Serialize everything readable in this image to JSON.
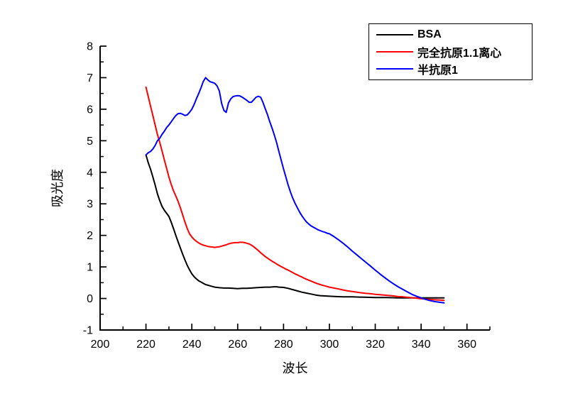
{
  "chart_data": {
    "type": "line",
    "title": "",
    "xlabel": "波长",
    "ylabel": "吸光度",
    "xlim": [
      200,
      370
    ],
    "ylim": [
      -1,
      8
    ],
    "grid": false,
    "legend_position": "top-right",
    "x_major_ticks": [
      200,
      220,
      240,
      260,
      280,
      300,
      320,
      340,
      360
    ],
    "x_minor_ticks": [
      210,
      230,
      250,
      270,
      290,
      310,
      330,
      350,
      370
    ],
    "y_major_ticks": [
      -1,
      0,
      1,
      2,
      3,
      4,
      5,
      6,
      7,
      8
    ],
    "y_minor_ticks": [
      -0.5,
      0.5,
      1.5,
      2.5,
      3.5,
      4.5,
      5.5,
      6.5,
      7.5
    ],
    "series": [
      {
        "name": "BSA",
        "color": "#000000",
        "points": [
          [
            220,
            4.55
          ],
          [
            221,
            4.3
          ],
          [
            222,
            4.1
          ],
          [
            223,
            3.85
          ],
          [
            224,
            3.6
          ],
          [
            225,
            3.32
          ],
          [
            226,
            3.1
          ],
          [
            227,
            2.92
          ],
          [
            228,
            2.8
          ],
          [
            229,
            2.7
          ],
          [
            230,
            2.6
          ],
          [
            231,
            2.42
          ],
          [
            232,
            2.22
          ],
          [
            233,
            2.0
          ],
          [
            234,
            1.8
          ],
          [
            235,
            1.6
          ],
          [
            236,
            1.4
          ],
          [
            237,
            1.22
          ],
          [
            238,
            1.05
          ],
          [
            239,
            0.91
          ],
          [
            240,
            0.78
          ],
          [
            241,
            0.69
          ],
          [
            242,
            0.62
          ],
          [
            243,
            0.56
          ],
          [
            244,
            0.52
          ],
          [
            245,
            0.48
          ],
          [
            246,
            0.44
          ],
          [
            247,
            0.42
          ],
          [
            248,
            0.4
          ],
          [
            249,
            0.38
          ],
          [
            250,
            0.36
          ],
          [
            252,
            0.34
          ],
          [
            254,
            0.33
          ],
          [
            256,
            0.33
          ],
          [
            258,
            0.32
          ],
          [
            260,
            0.31
          ],
          [
            262,
            0.32
          ],
          [
            264,
            0.32
          ],
          [
            266,
            0.33
          ],
          [
            268,
            0.34
          ],
          [
            270,
            0.35
          ],
          [
            272,
            0.36
          ],
          [
            274,
            0.36
          ],
          [
            276,
            0.37
          ],
          [
            277,
            0.37
          ],
          [
            278,
            0.36
          ],
          [
            280,
            0.35
          ],
          [
            282,
            0.32
          ],
          [
            284,
            0.28
          ],
          [
            286,
            0.24
          ],
          [
            288,
            0.2
          ],
          [
            290,
            0.17
          ],
          [
            292,
            0.14
          ],
          [
            294,
            0.11
          ],
          [
            296,
            0.09
          ],
          [
            298,
            0.08
          ],
          [
            300,
            0.07
          ],
          [
            303,
            0.06
          ],
          [
            306,
            0.05
          ],
          [
            310,
            0.05
          ],
          [
            315,
            0.04
          ],
          [
            320,
            0.03
          ],
          [
            325,
            0.03
          ],
          [
            330,
            0.02
          ],
          [
            335,
            0.02
          ],
          [
            340,
            0.02
          ],
          [
            345,
            0.02
          ],
          [
            350,
            0.02
          ]
        ]
      },
      {
        "name": "完全抗原1.1离心",
        "color": "#ff0000",
        "points": [
          [
            220,
            6.7
          ],
          [
            221,
            6.4
          ],
          [
            222,
            6.1
          ],
          [
            223,
            5.8
          ],
          [
            224,
            5.5
          ],
          [
            225,
            5.2
          ],
          [
            226,
            4.95
          ],
          [
            227,
            4.68
          ],
          [
            228,
            4.4
          ],
          [
            229,
            4.12
          ],
          [
            230,
            3.85
          ],
          [
            231,
            3.62
          ],
          [
            232,
            3.42
          ],
          [
            233,
            3.25
          ],
          [
            234,
            3.08
          ],
          [
            235,
            2.88
          ],
          [
            236,
            2.65
          ],
          [
            237,
            2.42
          ],
          [
            238,
            2.22
          ],
          [
            239,
            2.05
          ],
          [
            240,
            1.95
          ],
          [
            241,
            1.87
          ],
          [
            242,
            1.81
          ],
          [
            243,
            1.76
          ],
          [
            244,
            1.72
          ],
          [
            245,
            1.69
          ],
          [
            246,
            1.67
          ],
          [
            247,
            1.65
          ],
          [
            248,
            1.64
          ],
          [
            249,
            1.63
          ],
          [
            250,
            1.62
          ],
          [
            251,
            1.63
          ],
          [
            252,
            1.64
          ],
          [
            253,
            1.66
          ],
          [
            254,
            1.68
          ],
          [
            255,
            1.7
          ],
          [
            256,
            1.73
          ],
          [
            257,
            1.75
          ],
          [
            258,
            1.76
          ],
          [
            259,
            1.77
          ],
          [
            260,
            1.77
          ],
          [
            261,
            1.78
          ],
          [
            262,
            1.78
          ],
          [
            263,
            1.77
          ],
          [
            264,
            1.75
          ],
          [
            265,
            1.73
          ],
          [
            266,
            1.69
          ],
          [
            267,
            1.64
          ],
          [
            268,
            1.58
          ],
          [
            269,
            1.52
          ],
          [
            270,
            1.45
          ],
          [
            271,
            1.39
          ],
          [
            272,
            1.33
          ],
          [
            273,
            1.28
          ],
          [
            274,
            1.23
          ],
          [
            275,
            1.18
          ],
          [
            276,
            1.14
          ],
          [
            277,
            1.09
          ],
          [
            278,
            1.05
          ],
          [
            279,
            1.01
          ],
          [
            280,
            0.97
          ],
          [
            281,
            0.93
          ],
          [
            282,
            0.9
          ],
          [
            283,
            0.86
          ],
          [
            284,
            0.82
          ],
          [
            285,
            0.78
          ],
          [
            286,
            0.75
          ],
          [
            287,
            0.71
          ],
          [
            288,
            0.68
          ],
          [
            289,
            0.64
          ],
          [
            290,
            0.61
          ],
          [
            292,
            0.55
          ],
          [
            294,
            0.49
          ],
          [
            296,
            0.44
          ],
          [
            298,
            0.4
          ],
          [
            300,
            0.36
          ],
          [
            302,
            0.33
          ],
          [
            304,
            0.3
          ],
          [
            306,
            0.27
          ],
          [
            308,
            0.24
          ],
          [
            310,
            0.22
          ],
          [
            312,
            0.2
          ],
          [
            314,
            0.18
          ],
          [
            316,
            0.16
          ],
          [
            318,
            0.15
          ],
          [
            320,
            0.13
          ],
          [
            322,
            0.12
          ],
          [
            325,
            0.1
          ],
          [
            328,
            0.08
          ],
          [
            330,
            0.06
          ],
          [
            332,
            0.05
          ],
          [
            335,
            0.03
          ],
          [
            338,
            0.01
          ],
          [
            340,
            -0.01
          ],
          [
            342,
            -0.02
          ],
          [
            345,
            -0.04
          ],
          [
            348,
            -0.05
          ],
          [
            350,
            -0.06
          ]
        ]
      },
      {
        "name": "半抗原1",
        "color": "#0000ff",
        "points": [
          [
            220,
            4.55
          ],
          [
            221,
            4.62
          ],
          [
            222,
            4.66
          ],
          [
            223,
            4.74
          ],
          [
            224,
            4.85
          ],
          [
            225,
            5.0
          ],
          [
            226,
            5.08
          ],
          [
            227,
            5.2
          ],
          [
            228,
            5.3
          ],
          [
            229,
            5.42
          ],
          [
            230,
            5.5
          ],
          [
            231,
            5.6
          ],
          [
            232,
            5.7
          ],
          [
            233,
            5.8
          ],
          [
            234,
            5.86
          ],
          [
            235,
            5.87
          ],
          [
            236,
            5.84
          ],
          [
            237,
            5.8
          ],
          [
            238,
            5.82
          ],
          [
            239,
            5.9
          ],
          [
            240,
            6.0
          ],
          [
            241,
            6.15
          ],
          [
            242,
            6.33
          ],
          [
            243,
            6.5
          ],
          [
            244,
            6.68
          ],
          [
            245,
            6.88
          ],
          [
            246,
            7.0
          ],
          [
            247,
            6.93
          ],
          [
            248,
            6.87
          ],
          [
            249,
            6.85
          ],
          [
            250,
            6.82
          ],
          [
            251,
            6.74
          ],
          [
            252,
            6.58
          ],
          [
            253,
            6.18
          ],
          [
            254,
            5.96
          ],
          [
            255,
            5.9
          ],
          [
            256,
            6.2
          ],
          [
            257,
            6.33
          ],
          [
            258,
            6.4
          ],
          [
            259,
            6.42
          ],
          [
            260,
            6.43
          ],
          [
            261,
            6.42
          ],
          [
            262,
            6.38
          ],
          [
            263,
            6.33
          ],
          [
            264,
            6.28
          ],
          [
            265,
            6.22
          ],
          [
            266,
            6.22
          ],
          [
            267,
            6.3
          ],
          [
            268,
            6.38
          ],
          [
            269,
            6.41
          ],
          [
            270,
            6.38
          ],
          [
            271,
            6.22
          ],
          [
            272,
            6.02
          ],
          [
            273,
            5.83
          ],
          [
            274,
            5.6
          ],
          [
            275,
            5.4
          ],
          [
            276,
            5.18
          ],
          [
            277,
            4.93
          ],
          [
            278,
            4.65
          ],
          [
            279,
            4.38
          ],
          [
            280,
            4.1
          ],
          [
            281,
            3.85
          ],
          [
            282,
            3.6
          ],
          [
            283,
            3.38
          ],
          [
            284,
            3.18
          ],
          [
            285,
            3.02
          ],
          [
            286,
            2.88
          ],
          [
            287,
            2.74
          ],
          [
            288,
            2.62
          ],
          [
            289,
            2.52
          ],
          [
            290,
            2.43
          ],
          [
            291,
            2.36
          ],
          [
            292,
            2.3
          ],
          [
            293,
            2.26
          ],
          [
            294,
            2.22
          ],
          [
            295,
            2.18
          ],
          [
            296,
            2.15
          ],
          [
            297,
            2.12
          ],
          [
            298,
            2.1
          ],
          [
            299,
            2.07
          ],
          [
            300,
            2.05
          ],
          [
            302,
            1.96
          ],
          [
            304,
            1.86
          ],
          [
            306,
            1.75
          ],
          [
            308,
            1.63
          ],
          [
            310,
            1.5
          ],
          [
            312,
            1.38
          ],
          [
            314,
            1.26
          ],
          [
            316,
            1.14
          ],
          [
            318,
            1.02
          ],
          [
            320,
            0.9
          ],
          [
            322,
            0.78
          ],
          [
            324,
            0.67
          ],
          [
            326,
            0.56
          ],
          [
            328,
            0.46
          ],
          [
            330,
            0.37
          ],
          [
            332,
            0.29
          ],
          [
            334,
            0.21
          ],
          [
            336,
            0.13
          ],
          [
            338,
            0.07
          ],
          [
            340,
            0.02
          ],
          [
            342,
            -0.03
          ],
          [
            344,
            -0.07
          ],
          [
            346,
            -0.1
          ],
          [
            348,
            -0.12
          ],
          [
            350,
            -0.14
          ]
        ]
      }
    ]
  }
}
